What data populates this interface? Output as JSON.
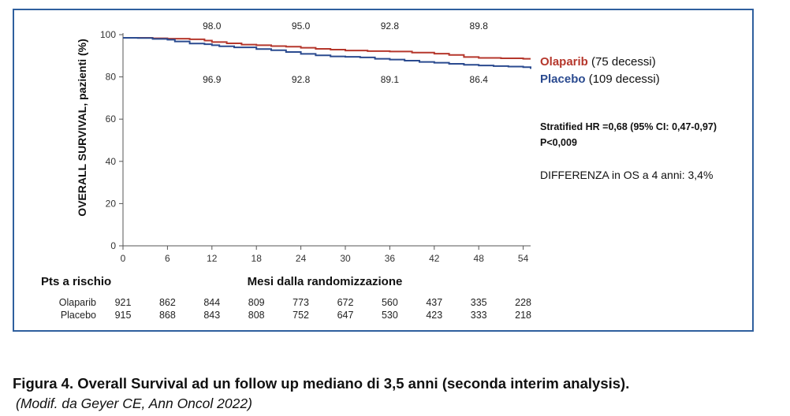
{
  "chart_data": {
    "type": "line",
    "ylabel": "OVERALL SURVIVAL, pazienti (%)",
    "xlabel": "Mesi dalla randomizzazione",
    "xlim": [
      0,
      55
    ],
    "ylim": [
      0,
      100
    ],
    "x_ticks": [
      0,
      6,
      12,
      18,
      24,
      30,
      36,
      42,
      48,
      54
    ],
    "y_ticks": [
      0,
      20,
      40,
      60,
      80,
      100
    ],
    "series": [
      {
        "name": "Olaparib",
        "legend_suffix": " (75 decessi)",
        "color": "#b5372c",
        "x": [
          0,
          4,
          6,
          9,
          11,
          12,
          14,
          16,
          18,
          20,
          22,
          24,
          26,
          28,
          30,
          33,
          36,
          39,
          42,
          44,
          46,
          48,
          51,
          54,
          55
        ],
        "y": [
          98.5,
          98.3,
          98.1,
          97.8,
          97.2,
          96.5,
          95.9,
          95.3,
          95.0,
          94.6,
          94.3,
          93.8,
          93.3,
          92.9,
          92.5,
          92.2,
          92.0,
          91.5,
          91.0,
          90.4,
          89.4,
          89.0,
          88.8,
          88.6,
          88.6
        ]
      },
      {
        "name": "Placebo",
        "legend_suffix": " (109 decessi)",
        "color": "#2a4a8f",
        "x": [
          0,
          2,
          4,
          6,
          7,
          9,
          11,
          12,
          13,
          15,
          18,
          20,
          22,
          24,
          26,
          28,
          30,
          32,
          34,
          36,
          38,
          40,
          42,
          44,
          46,
          48,
          50,
          52,
          54,
          55
        ],
        "y": [
          98.5,
          98.4,
          98.0,
          97.6,
          96.8,
          95.8,
          95.5,
          95.0,
          94.5,
          94.0,
          93.2,
          92.6,
          91.8,
          90.9,
          90.2,
          89.7,
          89.5,
          89.2,
          88.6,
          88.2,
          87.7,
          87.1,
          86.7,
          86.2,
          85.7,
          85.4,
          85.1,
          84.9,
          84.6,
          83.8
        ]
      }
    ],
    "annotations_top": [
      {
        "x": 12,
        "label": "98.0"
      },
      {
        "x": 24,
        "label": "95.0"
      },
      {
        "x": 36,
        "label": "92.8"
      },
      {
        "x": 48,
        "label": "89.8"
      }
    ],
    "annotations_bottom": [
      {
        "x": 12,
        "label": "96.9"
      },
      {
        "x": 24,
        "label": "92.8"
      },
      {
        "x": 36,
        "label": "89.1"
      },
      {
        "x": 48,
        "label": "86.4"
      }
    ],
    "stat_line1": "Stratified HR =0,68 (95% CI: 0,47-0,97)",
    "stat_line2": "P<0,009",
    "diff_text": "DIFFERENZA in OS a 4 anni: 3,4%",
    "risk_table": {
      "title": "Pts a rischio",
      "rows": [
        {
          "label": "Olaparib",
          "values": [
            921,
            862,
            844,
            809,
            773,
            672,
            560,
            437,
            335,
            228
          ]
        },
        {
          "label": "Placebo",
          "values": [
            915,
            868,
            843,
            808,
            752,
            647,
            530,
            423,
            333,
            218
          ]
        }
      ]
    }
  },
  "caption": "Figura 4. Overall Survival ad un follow up mediano di 3,5 anni (seconda interim analysis).",
  "source": "(Modif. da Geyer CE, Ann Oncol 2022)"
}
